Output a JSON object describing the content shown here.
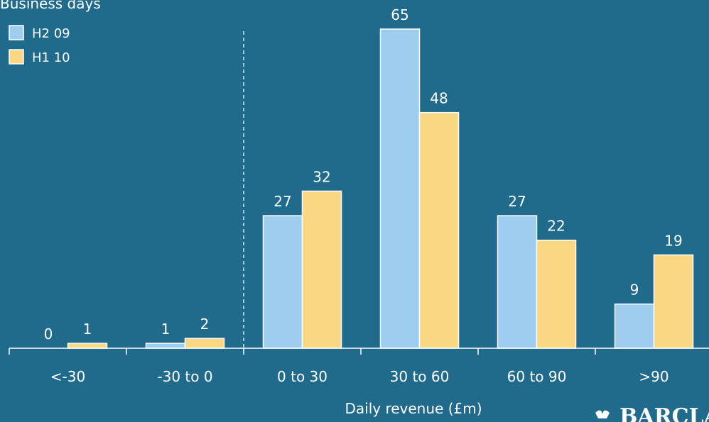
{
  "colors": {
    "background": "#206a8c",
    "series_h2_09": "#9ecdef",
    "series_h1_10": "#f9d783"
  },
  "chart_data": {
    "type": "bar",
    "title": "",
    "ylabel": "Business days",
    "xlabel": "Daily revenue (£m)",
    "categories": [
      "<-30",
      "-30 to 0",
      "0 to 30",
      "30 to 60",
      "60 to 90",
      ">90"
    ],
    "series": [
      {
        "name": "H2 09",
        "values": [
          0,
          1,
          27,
          65,
          27,
          9
        ]
      },
      {
        "name": "H1 10",
        "values": [
          1,
          2,
          32,
          48,
          22,
          19
        ]
      }
    ],
    "ylim": [
      0,
      65
    ],
    "grid": false,
    "legend": "top-left",
    "divider_after_category": "-30 to 0"
  },
  "brand": {
    "logo_text": "BARCLA",
    "logo_icon": "eagle-icon"
  }
}
